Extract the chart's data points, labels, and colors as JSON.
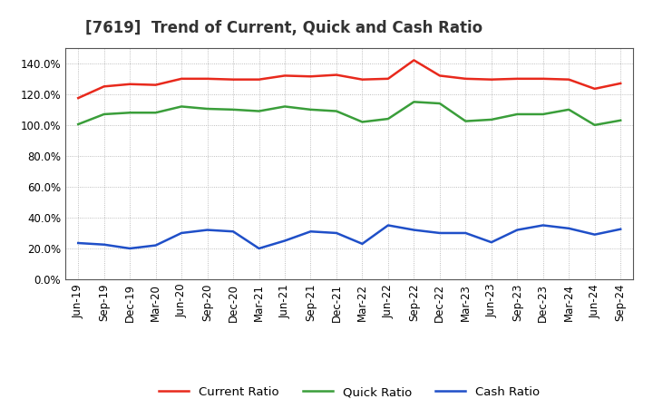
{
  "title": "[7619]  Trend of Current, Quick and Cash Ratio",
  "x_labels": [
    "Jun-19",
    "Sep-19",
    "Dec-19",
    "Mar-20",
    "Jun-20",
    "Sep-20",
    "Dec-20",
    "Mar-21",
    "Jun-21",
    "Sep-21",
    "Dec-21",
    "Mar-22",
    "Jun-22",
    "Sep-22",
    "Dec-22",
    "Mar-23",
    "Jun-23",
    "Sep-23",
    "Dec-23",
    "Mar-24",
    "Jun-24",
    "Sep-24"
  ],
  "current_ratio": [
    117.5,
    125.0,
    126.5,
    126.0,
    130.0,
    130.0,
    129.5,
    129.5,
    132.0,
    131.5,
    132.5,
    129.5,
    130.0,
    142.0,
    132.0,
    130.0,
    129.5,
    130.0,
    130.0,
    129.5,
    123.5,
    127.0
  ],
  "quick_ratio": [
    100.5,
    107.0,
    108.0,
    108.0,
    112.0,
    110.5,
    110.0,
    109.0,
    112.0,
    110.0,
    109.0,
    102.0,
    104.0,
    115.0,
    114.0,
    102.5,
    103.5,
    107.0,
    107.0,
    110.0,
    100.0,
    103.0
  ],
  "cash_ratio": [
    23.5,
    22.5,
    20.0,
    22.0,
    30.0,
    32.0,
    31.0,
    20.0,
    25.0,
    31.0,
    30.0,
    23.0,
    35.0,
    32.0,
    30.0,
    30.0,
    24.0,
    32.0,
    35.0,
    33.0,
    29.0,
    32.5
  ],
  "current_color": "#e8291c",
  "quick_color": "#3a9e3a",
  "cash_color": "#1f4fc8",
  "ylim": [
    0,
    150
  ],
  "yticks": [
    0,
    20,
    40,
    60,
    80,
    100,
    120,
    140
  ],
  "background_color": "#ffffff",
  "plot_bg_color": "#ffffff",
  "grid_color": "#aaaaaa",
  "line_width": 1.8,
  "title_fontsize": 12,
  "legend_fontsize": 9.5,
  "tick_fontsize": 8.5
}
